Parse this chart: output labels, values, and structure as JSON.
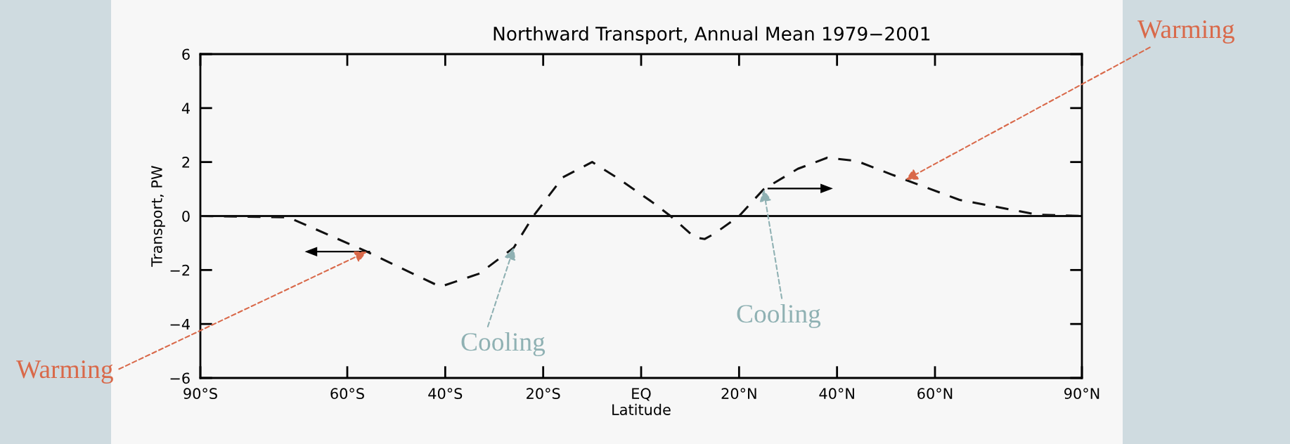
{
  "chart_data": {
    "type": "line",
    "title": "Northward Transport, Annual Mean 1979−2001",
    "xlabel": "Latitude",
    "ylabel": "Transport, PW",
    "x": [
      -90,
      -72,
      -56,
      -41,
      -33,
      -26,
      -22,
      -16,
      -10,
      -5,
      2,
      6,
      11,
      13,
      15,
      20,
      25,
      32,
      38,
      44,
      54,
      65,
      81,
      90
    ],
    "series": [
      {
        "color": "#111111",
        "values": [
          0,
          -0.05,
          -1.32,
          -2.62,
          -2.13,
          -1.17,
          0,
          1.43,
          2.0,
          1.43,
          0.55,
          0,
          -0.8,
          -0.85,
          -0.65,
          0,
          0.99,
          1.75,
          2.16,
          2.04,
          1.34,
          0.6,
          0.05,
          0
        ]
      }
    ],
    "line_style": "dashed",
    "marker": "none",
    "xlim": [
      -90,
      90
    ],
    "xticks": [
      {
        "value": -90,
        "label": "90°S"
      },
      {
        "value": -60,
        "label": "60°S"
      },
      {
        "value": -40,
        "label": "40°S"
      },
      {
        "value": -20,
        "label": "20°S"
      },
      {
        "value": 0,
        "label": "EQ"
      },
      {
        "value": 20,
        "label": "20°N"
      },
      {
        "value": 40,
        "label": "40°N"
      },
      {
        "value": 60,
        "label": "60°N"
      },
      {
        "value": 90,
        "label": "90°N"
      }
    ],
    "ylim": [
      -6,
      6
    ],
    "yticks": [
      -6,
      -4,
      -2,
      0,
      2,
      4,
      6
    ],
    "ref_lines": [
      {
        "axis": "y",
        "value": 0,
        "color": "#111111",
        "line_style": "solid"
      }
    ],
    "annotations": [
      {
        "text": "Warming",
        "x": -56,
        "y": -1.32
      },
      {
        "text": "Cooling",
        "x": -26,
        "y": -1.17
      },
      {
        "text": "Cooling",
        "x": 25,
        "y": 0.99
      },
      {
        "text": "Warming",
        "x": 54,
        "y": 1.34
      }
    ],
    "grid": false,
    "legend": false
  }
}
